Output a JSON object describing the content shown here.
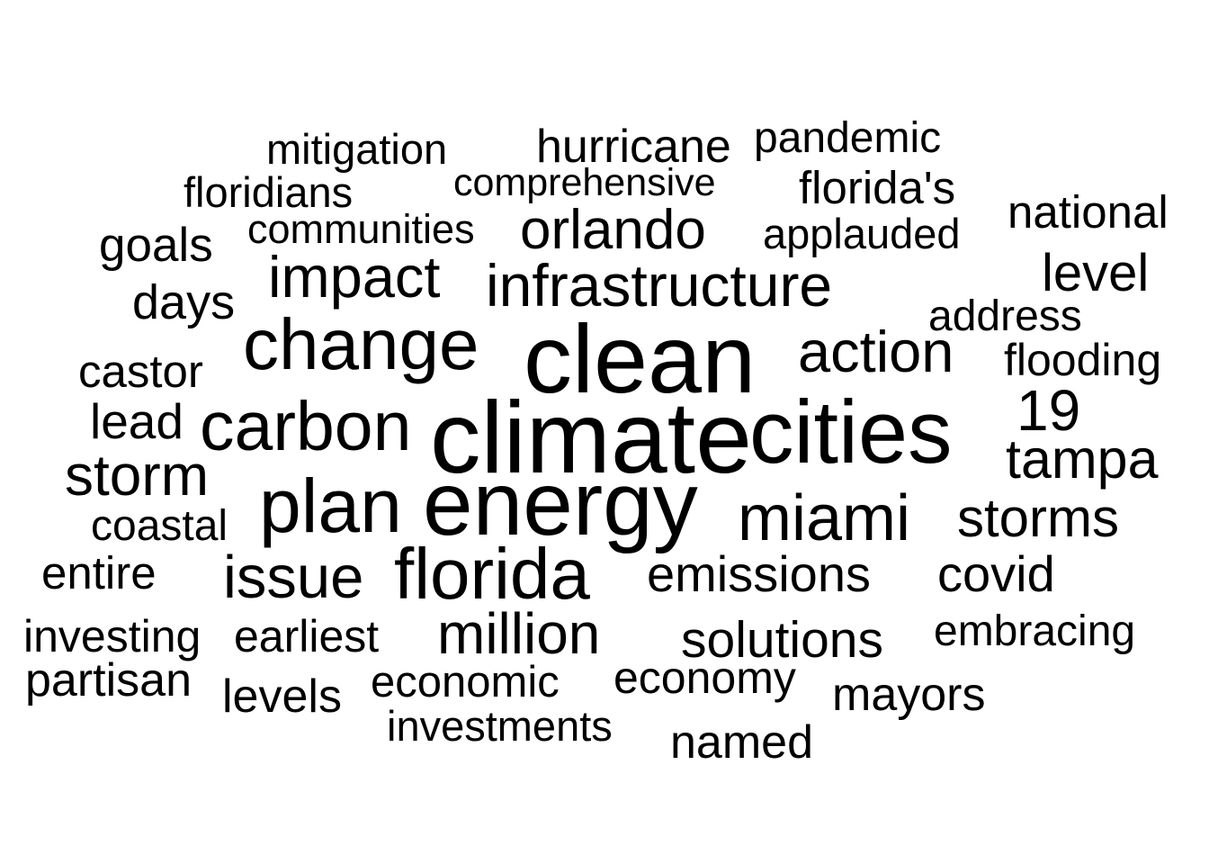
{
  "word_cloud": {
    "text_color": "#000000",
    "background_color": "#ffffff",
    "words": [
      {
        "text": "climate"
      },
      {
        "text": "clean"
      },
      {
        "text": "energy"
      },
      {
        "text": "cities"
      },
      {
        "text": "change"
      },
      {
        "text": "plan"
      },
      {
        "text": "carbon"
      },
      {
        "text": "florida"
      },
      {
        "text": "miami"
      },
      {
        "text": "infrastructure"
      },
      {
        "text": "impact"
      },
      {
        "text": "issue"
      },
      {
        "text": "action"
      },
      {
        "text": "storm"
      },
      {
        "text": "orlando"
      },
      {
        "text": "storms"
      },
      {
        "text": "tampa"
      },
      {
        "text": "19"
      },
      {
        "text": "million"
      },
      {
        "text": "solutions"
      },
      {
        "text": "emissions"
      },
      {
        "text": "covid"
      },
      {
        "text": "lead"
      },
      {
        "text": "level"
      },
      {
        "text": "national"
      },
      {
        "text": "hurricane"
      },
      {
        "text": "pandemic"
      },
      {
        "text": "mitigation"
      },
      {
        "text": "floridians"
      },
      {
        "text": "florida's"
      },
      {
        "text": "goals"
      },
      {
        "text": "communities"
      },
      {
        "text": "applauded"
      },
      {
        "text": "days"
      },
      {
        "text": "address"
      },
      {
        "text": "castor"
      },
      {
        "text": "flooding"
      },
      {
        "text": "coastal"
      },
      {
        "text": "entire"
      },
      {
        "text": "investing"
      },
      {
        "text": "earliest"
      },
      {
        "text": "embracing"
      },
      {
        "text": "partisan"
      },
      {
        "text": "levels"
      },
      {
        "text": "economic"
      },
      {
        "text": "economy"
      },
      {
        "text": "mayors"
      },
      {
        "text": "investments"
      },
      {
        "text": "named"
      },
      {
        "text": "comprehensive"
      }
    ]
  }
}
